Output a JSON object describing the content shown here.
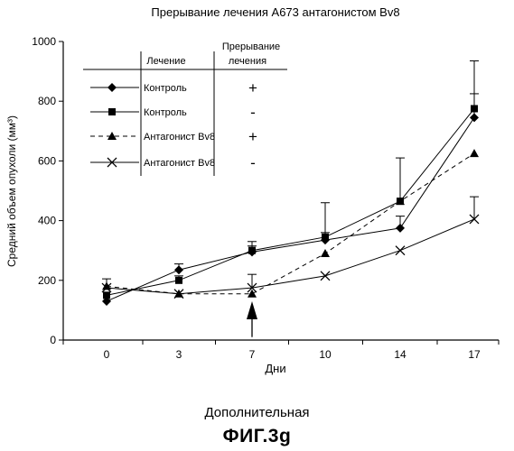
{
  "chart_data": {
    "type": "line",
    "title": "Прерывание лечения A673 антагонистом Bv8",
    "xlabel": "Дни",
    "ylabel": "Средний объем опухоли (мм³)",
    "categories": [
      "0",
      "3",
      "7",
      "10",
      "14",
      "17"
    ],
    "x": [
      0,
      3,
      7,
      10,
      14,
      17
    ],
    "yticks": [
      "0",
      "200",
      "400",
      "600",
      "800",
      "1000"
    ],
    "ylim": [
      0,
      1000
    ],
    "grid": false,
    "legend_position": "top-left",
    "legend_header": {
      "treatment": "Лечение",
      "interruption_line1": "Прерывание",
      "interruption_line2": "лечения"
    },
    "series": [
      {
        "name": "Контроль",
        "interruption": "+",
        "marker": "diamond",
        "dash": "solid",
        "values": [
          130,
          235,
          295,
          335,
          375,
          745
        ],
        "err": [
          0,
          20,
          20,
          25,
          40,
          80
        ]
      },
      {
        "name": "Контроль",
        "interruption": "-",
        "marker": "square",
        "dash": "solid",
        "values": [
          150,
          200,
          300,
          345,
          465,
          775
        ],
        "err": [
          0,
          15,
          30,
          115,
          145,
          160
        ]
      },
      {
        "name": "Антагонист Bv8",
        "interruption": "+",
        "marker": "triangle",
        "dash": "dashed",
        "values": [
          180,
          155,
          155,
          290,
          465,
          625
        ],
        "err": [
          25,
          0,
          0,
          0,
          0,
          0
        ]
      },
      {
        "name": "Антагонист Bv8",
        "interruption": "-",
        "marker": "x",
        "dash": "solid",
        "values": [
          175,
          155,
          175,
          215,
          300,
          405
        ],
        "err": [
          0,
          0,
          45,
          0,
          0,
          75
        ]
      }
    ],
    "annotation": {
      "type": "arrow",
      "x": 7,
      "y_from": 10,
      "y_to": 130
    }
  },
  "caption": {
    "subtitle": "Дополнительная",
    "figure": "ФИГ.3g"
  }
}
